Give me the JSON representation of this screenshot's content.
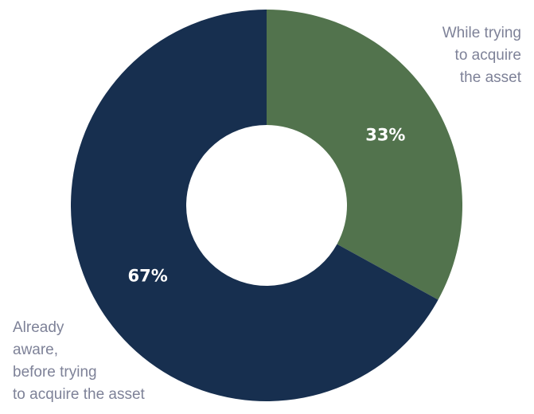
{
  "chart_data": {
    "type": "pie",
    "variant": "donut",
    "slices": [
      {
        "label_lines": [
          "While trying",
          "to acquire",
          "the asset"
        ],
        "value": 33,
        "value_label": "33%",
        "color": "#52734d"
      },
      {
        "label_lines": [
          "Already",
          "aware,",
          "before trying",
          "to acquire the asset"
        ],
        "value": 67,
        "value_label": "67%",
        "color": "#172f4f"
      }
    ],
    "start": "12 o'clock",
    "direction": "clockwise",
    "legend": "none",
    "label_color": "#7e8298",
    "value_label_color": "#ffffff"
  }
}
